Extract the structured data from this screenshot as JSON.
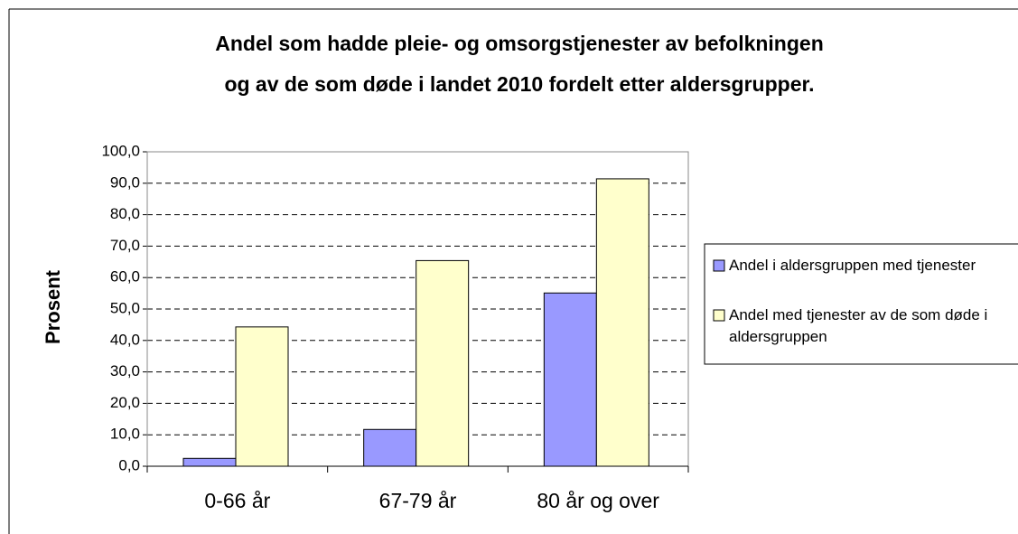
{
  "chart_data": {
    "type": "bar",
    "title": [
      "Andel som hadde pleie- og omsorgstjenester av befolkningen",
      "og av de som døde i landet 2010 fordelt etter aldersgrupper."
    ],
    "y_label": "Prosent",
    "categories": [
      "0-66 år",
      "67-79 år",
      "80 år og over"
    ],
    "series": [
      {
        "name": "Andel i aldersgruppen med tjenester",
        "color": "#9999ff",
        "values": [
          2.5,
          11.7,
          55.1
        ]
      },
      {
        "name": "Andel med tjenester av de som døde i aldersgruppen",
        "color": "#ffffcc",
        "values": [
          44.3,
          65.4,
          91.4
        ]
      }
    ],
    "ylim": [
      0,
      100
    ],
    "yticks": [
      {
        "value": 0,
        "label": "0,0"
      },
      {
        "value": 10,
        "label": "10,0"
      },
      {
        "value": 20,
        "label": "20,0"
      },
      {
        "value": 30,
        "label": "30,0"
      },
      {
        "value": 40,
        "label": "40,0"
      },
      {
        "value": 50,
        "label": "50,0"
      },
      {
        "value": 60,
        "label": "60,0"
      },
      {
        "value": 70,
        "label": "70,0"
      },
      {
        "value": 80,
        "label": "80,0"
      },
      {
        "value": 90,
        "label": "90,0"
      },
      {
        "value": 100,
        "label": "100,0"
      }
    ],
    "grid": true,
    "legend": "right"
  }
}
